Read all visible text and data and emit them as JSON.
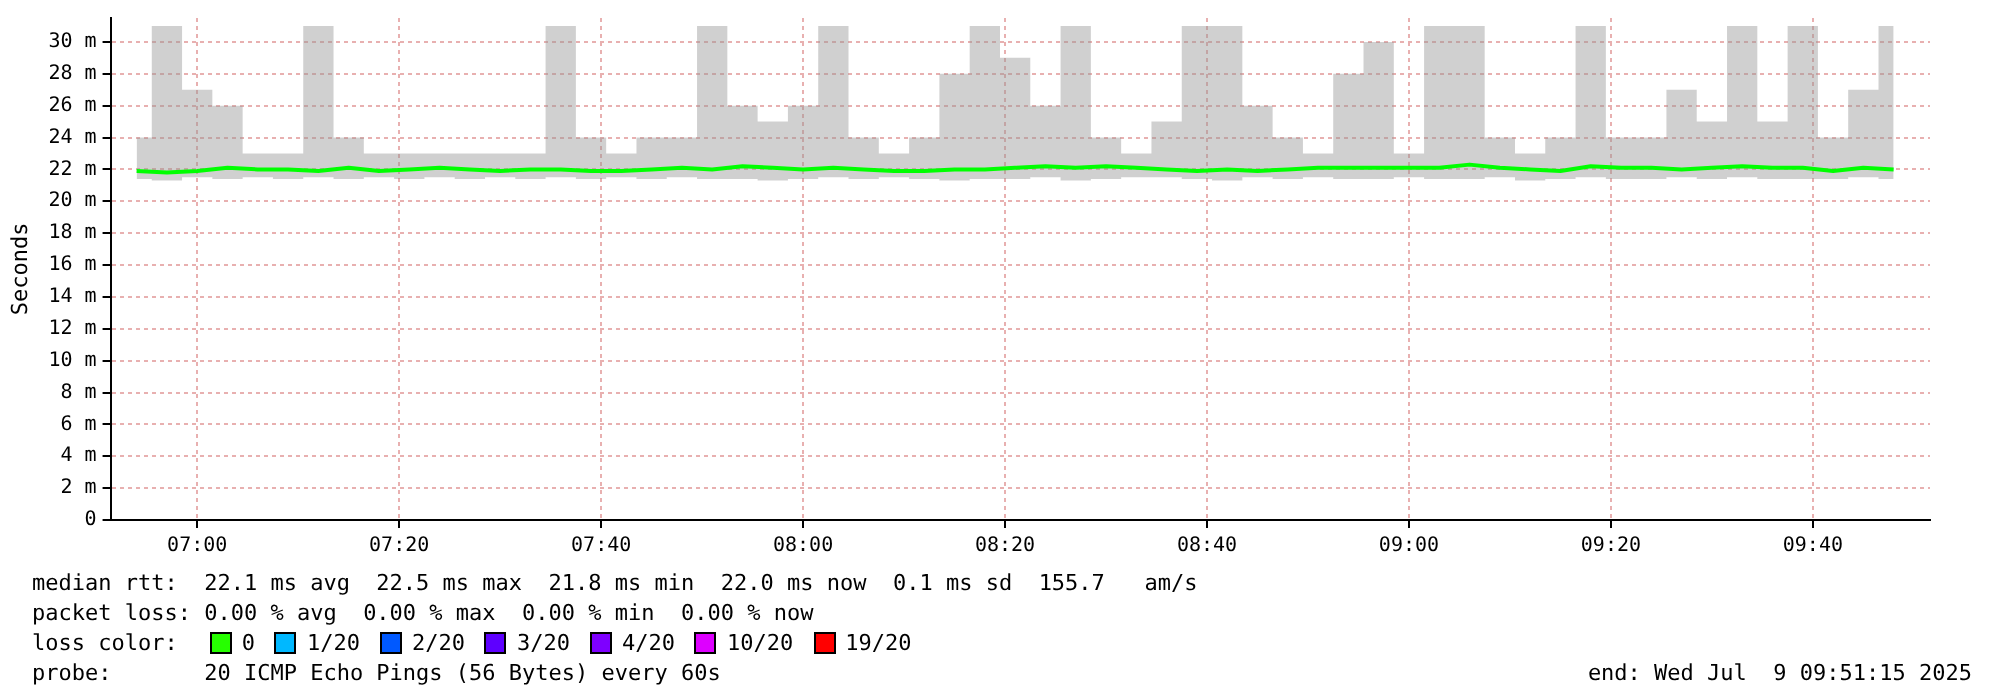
{
  "chart_data": {
    "type": "line",
    "ylabel": "Seconds",
    "x": [
      6.9,
      6.95,
      7.0,
      7.05,
      7.1,
      7.15,
      7.2,
      7.25,
      7.3,
      7.35,
      7.4,
      7.45,
      7.5,
      7.55,
      7.6,
      7.65,
      7.7,
      7.75,
      7.8,
      7.85,
      7.9,
      7.95,
      8.0,
      8.05,
      8.1,
      8.15,
      8.2,
      8.25,
      8.3,
      8.35,
      8.4,
      8.45,
      8.5,
      8.55,
      8.6,
      8.65,
      8.7,
      8.75,
      8.8,
      8.85,
      8.9,
      8.95,
      9.0,
      9.05,
      9.1,
      9.15,
      9.2,
      9.25,
      9.3,
      9.35,
      9.4,
      9.45,
      9.5,
      9.55,
      9.6,
      9.65,
      9.7,
      9.75,
      9.8
    ],
    "series": [
      {
        "color": "#00ff00",
        "values": [
          21.9,
          21.8,
          21.9,
          22.1,
          22.0,
          22.0,
          21.9,
          22.1,
          21.9,
          22.0,
          22.1,
          22.0,
          21.9,
          22.0,
          22.0,
          21.9,
          21.9,
          22.0,
          22.1,
          22.0,
          22.2,
          22.1,
          22.0,
          22.1,
          22.0,
          21.9,
          21.9,
          22.0,
          22.0,
          22.1,
          22.2,
          22.1,
          22.2,
          22.1,
          22.0,
          21.9,
          22.0,
          21.9,
          22.0,
          22.1,
          22.1,
          22.1,
          22.1,
          22.1,
          22.3,
          22.1,
          22.0,
          21.9,
          22.2,
          22.1,
          22.1,
          22.0,
          22.1,
          22.2,
          22.1,
          22.1,
          21.9,
          22.1,
          22.0
        ],
        "lower": [
          21.4,
          21.3,
          21.5,
          21.4,
          21.5,
          21.4,
          21.5,
          21.4,
          21.5,
          21.4,
          21.5,
          21.4,
          21.5,
          21.4,
          21.5,
          21.4,
          21.5,
          21.4,
          21.5,
          21.4,
          21.4,
          21.3,
          21.4,
          21.5,
          21.4,
          21.5,
          21.4,
          21.3,
          21.4,
          21.4,
          21.5,
          21.3,
          21.4,
          21.5,
          21.5,
          21.4,
          21.3,
          21.5,
          21.4,
          21.5,
          21.4,
          21.4,
          21.5,
          21.4,
          21.4,
          21.5,
          21.3,
          21.4,
          21.5,
          21.4,
          21.4,
          21.5,
          21.4,
          21.5,
          21.4,
          21.4,
          21.4,
          21.5,
          21.4
        ],
        "upper": [
          24,
          31,
          27,
          26,
          23,
          23,
          31,
          24,
          23,
          23,
          23,
          23,
          23,
          23,
          31,
          24,
          23,
          24,
          24,
          31,
          26,
          25,
          26,
          31,
          24,
          23,
          24,
          28,
          31,
          29,
          26,
          31,
          24,
          23,
          25,
          31,
          31,
          26,
          24,
          23,
          28,
          30,
          23,
          31,
          31,
          24,
          23,
          24,
          31,
          24,
          24,
          27,
          25,
          31,
          25,
          31,
          24,
          27,
          31
        ]
      }
    ],
    "xlim": [
      6.857,
      9.86
    ],
    "xticks": [
      {
        "value": 7,
        "label": "07:00"
      },
      {
        "value": 7.3333,
        "label": "07:20"
      },
      {
        "value": 7.6667,
        "label": "07:40"
      },
      {
        "value": 8,
        "label": "08:00"
      },
      {
        "value": 8.3333,
        "label": "08:20"
      },
      {
        "value": 8.6667,
        "label": "08:40"
      },
      {
        "value": 9,
        "label": "09:00"
      },
      {
        "value": 9.3333,
        "label": "09:20"
      },
      {
        "value": 9.6667,
        "label": "09:40"
      }
    ],
    "ylim": [
      0,
      31.5
    ],
    "yticks": [
      0,
      {
        "value": 2,
        "label": "2 m"
      },
      {
        "value": 4,
        "label": "4 m"
      },
      {
        "value": 6,
        "label": "6 m"
      },
      {
        "value": 8,
        "label": "8 m"
      },
      {
        "value": 10,
        "label": "10 m"
      },
      {
        "value": 12,
        "label": "12 m"
      },
      {
        "value": 14,
        "label": "14 m"
      },
      {
        "value": 16,
        "label": "16 m"
      },
      {
        "value": 18,
        "label": "18 m"
      },
      {
        "value": 20,
        "label": "20 m"
      },
      {
        "value": 22,
        "label": "22 m"
      },
      {
        "value": 24,
        "label": "24 m"
      },
      {
        "value": 26,
        "label": "26 m"
      },
      {
        "value": 28,
        "label": "28 m"
      },
      {
        "value": 30,
        "label": "30 m"
      }
    ],
    "grid": true,
    "legend": false,
    "marker": "none",
    "line_style": "solid",
    "annotations": [
      "median rtt:  22.1 ms avg  22.5 ms max  21.8 ms min  22.0 ms now  0.1 ms sd  155.7   am/s",
      "packet loss: 0.00 % avg  0.00 % max  0.00 % min  0.00 % now",
      "loss color:",
      "0",
      "1/20",
      "2/20",
      "3/20",
      "4/20",
      "10/20",
      "19/20",
      "probe:       20 ICMP Echo Pings (56 Bytes) every 60s",
      "end: Wed Jul  9 09:51:15 2025"
    ]
  }
}
